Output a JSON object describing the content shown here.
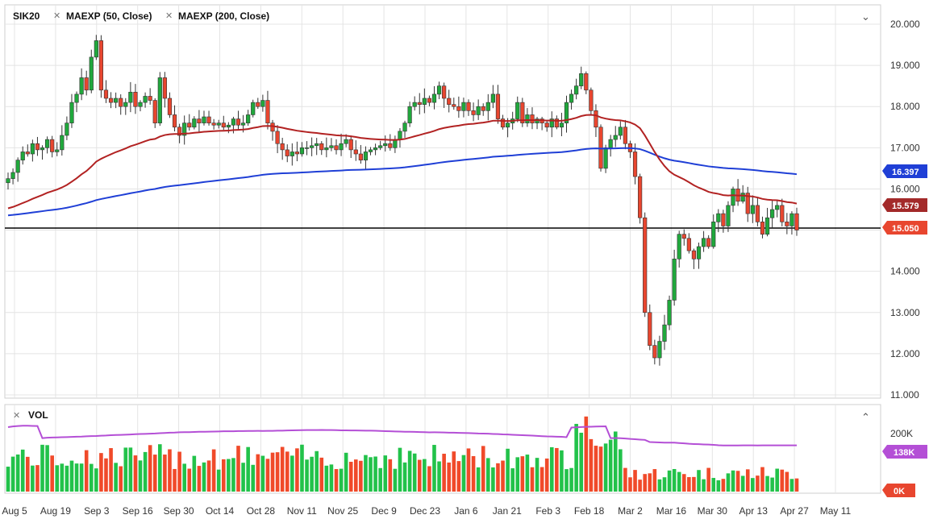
{
  "legend": {
    "symbol": "SIK20",
    "ma1_label": "MAEXP (50, Close)",
    "ma2_label": "MAEXP (200, Close)",
    "vol_label": "VOL",
    "ma1_color": "#b22222",
    "ma2_color": "#1f3fd6",
    "vol_ma_color": "#b44fd6"
  },
  "badges": {
    "ma200": "16.397",
    "ma50": "15.579",
    "last": "15.050",
    "vol_ma": "138K",
    "vol_zero": "0K"
  },
  "colors": {
    "up": "#20a83c",
    "down": "#e8462f",
    "grid": "#e4e4e4",
    "hline": "#000000",
    "vol_up": "#22c24a",
    "vol_down": "#f04a2a"
  },
  "chart_data": [
    {
      "type": "candlestick",
      "title": "SIK20",
      "ylim": [
        11.0,
        20.0
      ],
      "y_ticks": [
        "20.000",
        "19.000",
        "18.000",
        "17.000",
        "16.000",
        "15.000",
        "14.000",
        "13.000",
        "12.000",
        "11.000"
      ],
      "x_ticks": [
        "Aug 5",
        "Aug 19",
        "Sep 3",
        "Sep 16",
        "Sep 30",
        "Oct 14",
        "Oct 28",
        "Nov 11",
        "Nov 25",
        "Dec 9",
        "Dec 23",
        "Jan 6",
        "Jan 21",
        "Feb 3",
        "Feb 18",
        "Mar 2",
        "Mar 16",
        "Mar 30",
        "Apr 13",
        "Apr 27",
        "May 11"
      ],
      "horizontal_line": 15.05,
      "close_approx": [
        16.25,
        16.4,
        16.7,
        16.9,
        16.85,
        17.1,
        16.95,
        17.0,
        17.2,
        16.9,
        16.95,
        17.3,
        17.6,
        18.1,
        18.3,
        18.7,
        18.4,
        19.2,
        19.6,
        18.4,
        18.2,
        18.1,
        18.2,
        18.0,
        18.1,
        18.35,
        18.0,
        18.1,
        18.25,
        18.15,
        17.6,
        18.7,
        18.2,
        17.8,
        17.5,
        17.3,
        17.6,
        17.5,
        17.7,
        17.6,
        17.75,
        17.6,
        17.55,
        17.6,
        17.5,
        17.55,
        17.7,
        17.55,
        17.6,
        17.8,
        18.1,
        18.0,
        18.15,
        17.6,
        17.4,
        17.1,
        16.95,
        16.8,
        16.9,
        16.85,
        17.0,
        17.0,
        17.05,
        17.1,
        16.95,
        17.0,
        17.05,
        16.95,
        17.1,
        17.2,
        16.95,
        16.85,
        16.7,
        16.9,
        16.95,
        17.0,
        17.05,
        17.1,
        17.0,
        17.2,
        17.4,
        17.6,
        18.0,
        18.1,
        18.05,
        18.2,
        18.1,
        18.3,
        18.5,
        18.2,
        18.05,
        18.0,
        17.9,
        18.1,
        17.9,
        17.8,
        18.0,
        17.9,
        18.1,
        18.3,
        17.7,
        17.5,
        17.6,
        17.7,
        18.1,
        17.6,
        17.8,
        17.6,
        17.7,
        17.6,
        17.5,
        17.7,
        17.5,
        17.6,
        18.1,
        18.3,
        18.5,
        18.8,
        18.4,
        17.9,
        17.5,
        16.5,
        17.0,
        17.2,
        17.3,
        17.5,
        17.1,
        16.9,
        16.3,
        15.3,
        13.0,
        12.2,
        11.9,
        12.3,
        12.7,
        13.3,
        14.3,
        14.9,
        14.8,
        14.5,
        14.3,
        14.6,
        14.8,
        14.6,
        15.2,
        15.4,
        15.1,
        15.6,
        16.0,
        15.7,
        15.9,
        15.4,
        15.6,
        15.2,
        14.9,
        15.3,
        15.5,
        15.6,
        15.2,
        15.1,
        15.4,
        15.0
      ],
      "ma50_approx_start_end": [
        15.5,
        15.58
      ],
      "ma200_approx_start_end": [
        15.35,
        16.4
      ]
    },
    {
      "type": "bar",
      "title": "VOL",
      "y_ticks": [
        "200K"
      ],
      "ylim": [
        0,
        220000
      ],
      "ma_last": "138K"
    }
  ]
}
